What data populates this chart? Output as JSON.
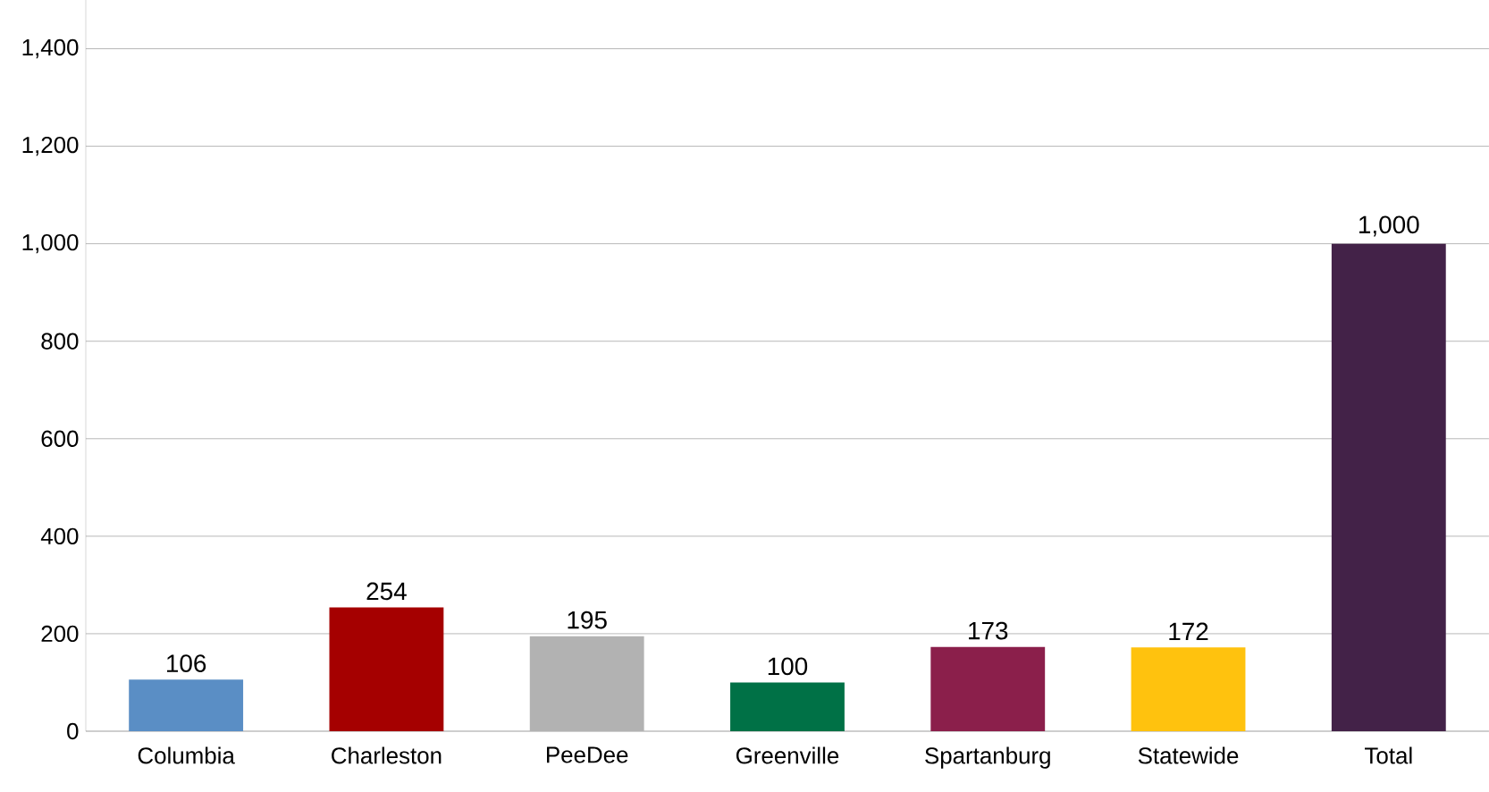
{
  "chart_data": {
    "type": "bar",
    "categories": [
      "Columbia",
      "Charleston",
      "PeeDee",
      "Greenville",
      "Spartanburg",
      "Statewide",
      "Total"
    ],
    "values": [
      106,
      254,
      195,
      100,
      173,
      172,
      1000
    ],
    "colors": [
      "#5a8ec5",
      "#a50000",
      "#b2b2b2",
      "#007146",
      "#8b1f4b",
      "#ffc20e",
      "#432248"
    ],
    "ylim": [
      0,
      1500
    ],
    "yticks": [
      0,
      200,
      400,
      600,
      800,
      {
        "value": 1000,
        "label": "1,000"
      },
      {
        "value": 1200,
        "label": "1,200"
      },
      {
        "value": 1400,
        "label": "1,400"
      }
    ],
    "value_labels": [
      "106",
      "254",
      "195",
      "100",
      "173",
      "172",
      "1,000"
    ],
    "grid": "y"
  }
}
